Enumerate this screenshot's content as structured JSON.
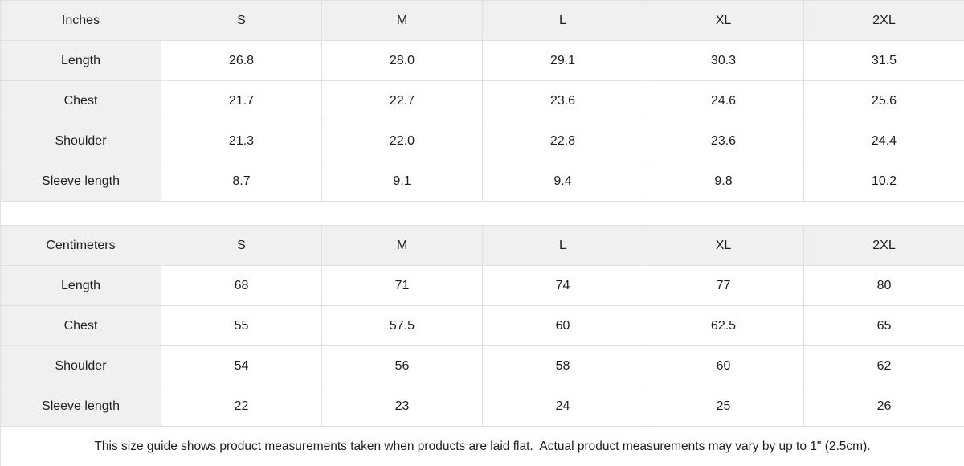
{
  "tables": [
    {
      "unit_label": "Inches",
      "sizes": [
        "S",
        "M",
        "L",
        "XL",
        "2XL"
      ],
      "rows": [
        {
          "label": "Length",
          "values": [
            "26.8",
            "28.0",
            "29.1",
            "30.3",
            "31.5"
          ]
        },
        {
          "label": "Chest",
          "values": [
            "21.7",
            "22.7",
            "23.6",
            "24.6",
            "25.6"
          ]
        },
        {
          "label": "Shoulder",
          "values": [
            "21.3",
            "22.0",
            "22.8",
            "23.6",
            "24.4"
          ]
        },
        {
          "label": "Sleeve length",
          "values": [
            "8.7",
            "9.1",
            "9.4",
            "9.8",
            "10.2"
          ]
        }
      ]
    },
    {
      "unit_label": "Centimeters",
      "sizes": [
        "S",
        "M",
        "L",
        "XL",
        "2XL"
      ],
      "rows": [
        {
          "label": "Length",
          "values": [
            "68",
            "71",
            "74",
            "77",
            "80"
          ]
        },
        {
          "label": "Chest",
          "values": [
            "55",
            "57.5",
            "60",
            "62.5",
            "65"
          ]
        },
        {
          "label": "Shoulder",
          "values": [
            "54",
            "56",
            "58",
            "60",
            "62"
          ]
        },
        {
          "label": "Sleeve length",
          "values": [
            "22",
            "23",
            "24",
            "25",
            "26"
          ]
        }
      ]
    }
  ],
  "footer": {
    "note": "This size guide shows product measurements taken when products are laid flat.  Actual product measurements may vary by up to 1\" (2.5cm)."
  },
  "colors": {
    "header_bg": "#f0f0f0",
    "border": "#e0e0e0",
    "cell_bg": "#ffffff",
    "text": "#1d1d1d"
  }
}
